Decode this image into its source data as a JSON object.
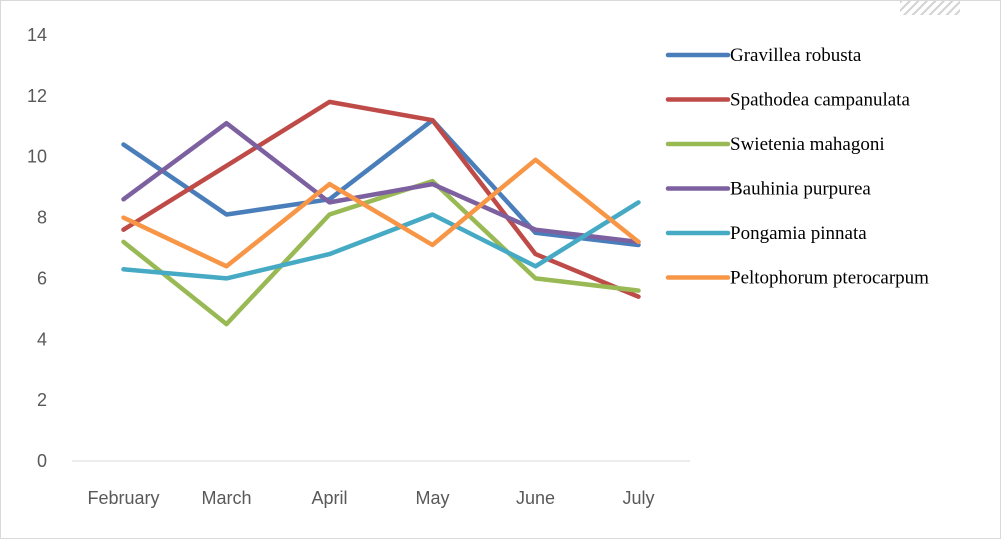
{
  "chart_data": {
    "type": "line",
    "title": "",
    "xlabel": "",
    "ylabel": "",
    "categories": [
      "February",
      "March",
      "April",
      "May",
      "June",
      "July"
    ],
    "ylim": [
      0,
      14
    ],
    "yticks": [
      0,
      2,
      4,
      6,
      8,
      10,
      12,
      14
    ],
    "grid": false,
    "legend": "right",
    "series": [
      {
        "name": "Gravillea robusta",
        "color": "#4a7ebb",
        "values": [
          10.4,
          8.1,
          8.6,
          11.2,
          7.5,
          7.1
        ]
      },
      {
        "name": "Spathodea campanulata",
        "color": "#be4b48",
        "values": [
          7.6,
          9.7,
          11.8,
          11.2,
          6.8,
          5.4
        ]
      },
      {
        "name": "Swietenia mahagoni",
        "color": "#98b954",
        "values": [
          7.2,
          4.5,
          8.1,
          9.2,
          6.0,
          5.6
        ]
      },
      {
        "name": "Bauhinia purpurea",
        "color": "#7d60a0",
        "values": [
          8.6,
          11.1,
          8.5,
          9.1,
          7.6,
          7.2
        ]
      },
      {
        "name": "Pongamia pinnata",
        "color": "#46aac5",
        "values": [
          6.3,
          6.0,
          6.8,
          8.1,
          6.4,
          8.5
        ]
      },
      {
        "name": "Peltophorum pterocarpum",
        "color": "#f79646",
        "values": [
          8.0,
          6.4,
          9.1,
          7.1,
          9.9,
          7.2
        ]
      }
    ]
  }
}
